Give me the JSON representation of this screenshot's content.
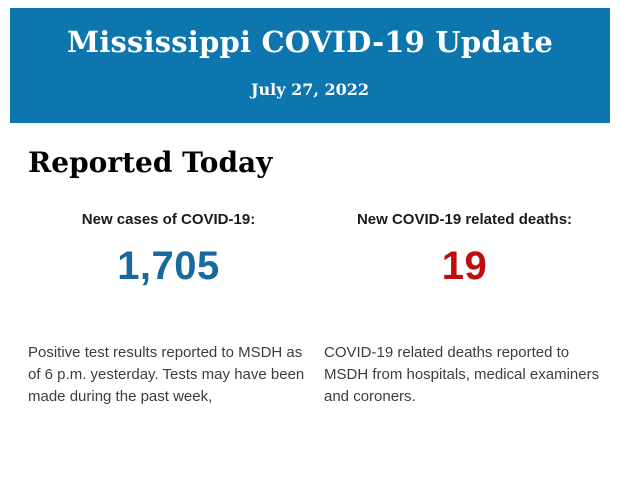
{
  "header": {
    "title": "Mississippi COVID-19 Update",
    "date": "July 27, 2022",
    "background_color": "#0e76ae",
    "text_color": "#ffffff"
  },
  "main": {
    "heading": "Reported Today",
    "stats": [
      {
        "label": "New cases of COVID-19:",
        "value": "1,705",
        "value_color": "#17699f",
        "description": "Positive test results reported to MSDH as of 6 p.m. yesterday. Tests may have been made during the past week,"
      },
      {
        "label": "New COVID-19 related deaths:",
        "value": "19",
        "value_color": "#c00d0d",
        "description": "COVID-19 related deaths reported to MSDH from hospitals, medical examiners and coroners."
      }
    ]
  }
}
